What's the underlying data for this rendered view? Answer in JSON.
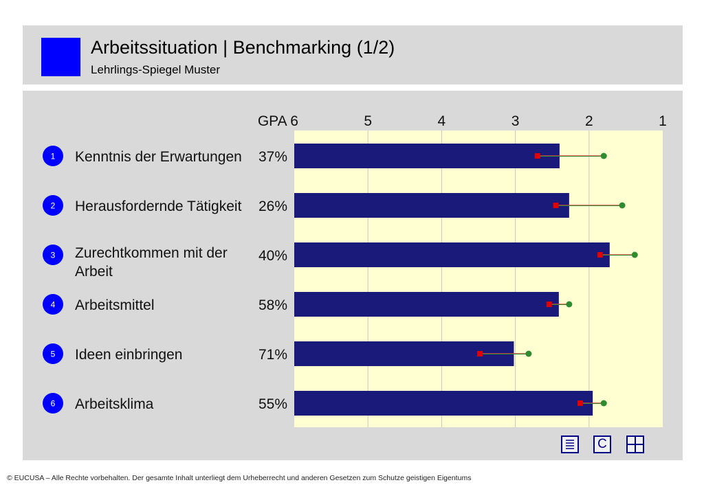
{
  "header": {
    "title": "Arbeitssituation | Benchmarking (1/2)",
    "subtitle": "Lehrlings-Spiegel Muster"
  },
  "colors": {
    "bar": "#1a1a7a",
    "plot_bg": "#ffffd2",
    "marker_red": "#e00000",
    "marker_green": "#2e8b2e",
    "badge": "#0000ff"
  },
  "chart_data": {
    "type": "bar",
    "orientation": "horizontal",
    "axis_label": "GPA",
    "xlim": [
      6,
      1
    ],
    "ticks": [
      6,
      5,
      4,
      3,
      2,
      1
    ],
    "grid": true,
    "rows": [
      {
        "number": "1",
        "label": "Kenntnis der Erwartungen",
        "percent": "37%",
        "value": 2.4,
        "red": 2.7,
        "green": 1.8
      },
      {
        "number": "2",
        "label": "Herausfordernde Tätigkeit",
        "percent": "26%",
        "value": 2.27,
        "red": 2.45,
        "green": 1.55
      },
      {
        "number": "3",
        "label": "Zurechtkommen mit der Arbeit",
        "percent": "40%",
        "value": 1.72,
        "red": 1.85,
        "green": 1.38
      },
      {
        "number": "4",
        "label": "Arbeitsmittel",
        "percent": "58%",
        "value": 2.41,
        "red": 2.54,
        "green": 2.27
      },
      {
        "number": "5",
        "label": "Ideen einbringen",
        "percent": "71%",
        "value": 3.02,
        "red": 3.48,
        "green": 2.82
      },
      {
        "number": "6",
        "label": "Arbeitsklima",
        "percent": "55%",
        "value": 1.95,
        "red": 2.12,
        "green": 1.8
      }
    ]
  },
  "nav": {
    "list_icon": "list-icon",
    "c_label": "C",
    "grid_icon": "grid-icon"
  },
  "footer": {
    "text": "© EUCUSA – Alle Rechte vorbehalten. Der gesamte Inhalt unterliegt dem Urheberrecht und anderen Gesetzen zum Schutze geistigen Eigentums"
  }
}
